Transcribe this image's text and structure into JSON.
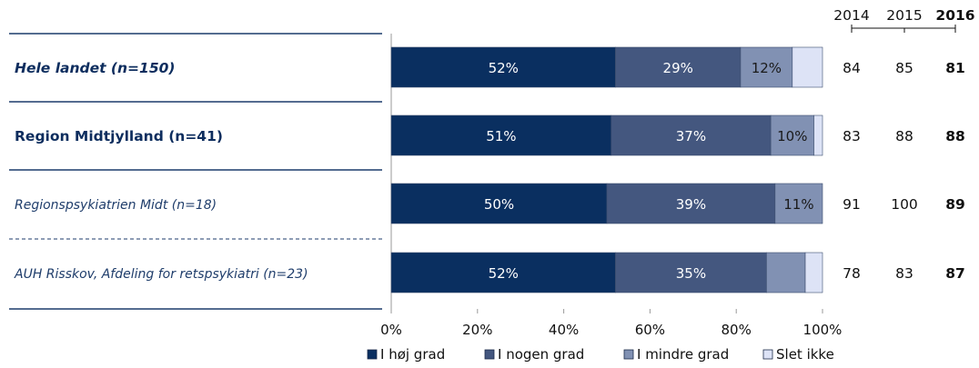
{
  "chart_data": {
    "type": "bar",
    "orientation": "horizontal",
    "stacked": true,
    "categories": [
      "Hele landet (n=150)",
      "Region Midtjylland (n=41)",
      "Regionspsykiatrien Midt (n=18)",
      "AUH Risskov, Afdeling for retspsykiatri (n=23)"
    ],
    "category_styles": [
      {
        "bold": true,
        "italic": true,
        "color": "#0d2d5e"
      },
      {
        "bold": true,
        "italic": false,
        "color": "#0d2d5e"
      },
      {
        "bold": false,
        "italic": true,
        "color": "#1f3d6b"
      },
      {
        "bold": false,
        "italic": true,
        "color": "#1f3d6b"
      }
    ],
    "series": [
      {
        "name": "I høj grad",
        "values": [
          52,
          51,
          50,
          52
        ],
        "labels": [
          "52%",
          "51%",
          "50%",
          "52%"
        ],
        "color": "#0a2f60",
        "label_color": "#ffffff"
      },
      {
        "name": "I nogen grad",
        "values": [
          29,
          37,
          39,
          35
        ],
        "labels": [
          "29%",
          "37%",
          "39%",
          "35%"
        ],
        "color": "#44577f",
        "label_color": "#ffffff"
      },
      {
        "name": "I mindre grad",
        "values": [
          12,
          10,
          11,
          9
        ],
        "labels": [
          "12%",
          "10%",
          "11%",
          ""
        ],
        "color": "#8191b3",
        "label_color": "#1a1a1a"
      },
      {
        "name": "Slet ikke",
        "values": [
          7,
          2,
          0,
          4
        ],
        "labels": [
          "",
          "",
          "",
          ""
        ],
        "color": "#dde3f6",
        "label_color": "#1a1a1a"
      }
    ],
    "xlim": [
      0,
      100
    ],
    "x_ticks": [
      "0%",
      "20%",
      "40%",
      "60%",
      "80%",
      "100%"
    ],
    "legend_position": "bottom",
    "year_columns": {
      "headers": [
        "2014",
        "2015",
        "2016"
      ],
      "header_bold": [
        false,
        false,
        true
      ],
      "rows": [
        [
          "84",
          "85",
          "81"
        ],
        [
          "83",
          "88",
          "88"
        ],
        [
          "91",
          "100",
          "89"
        ],
        [
          "78",
          "83",
          "87"
        ]
      ]
    }
  }
}
